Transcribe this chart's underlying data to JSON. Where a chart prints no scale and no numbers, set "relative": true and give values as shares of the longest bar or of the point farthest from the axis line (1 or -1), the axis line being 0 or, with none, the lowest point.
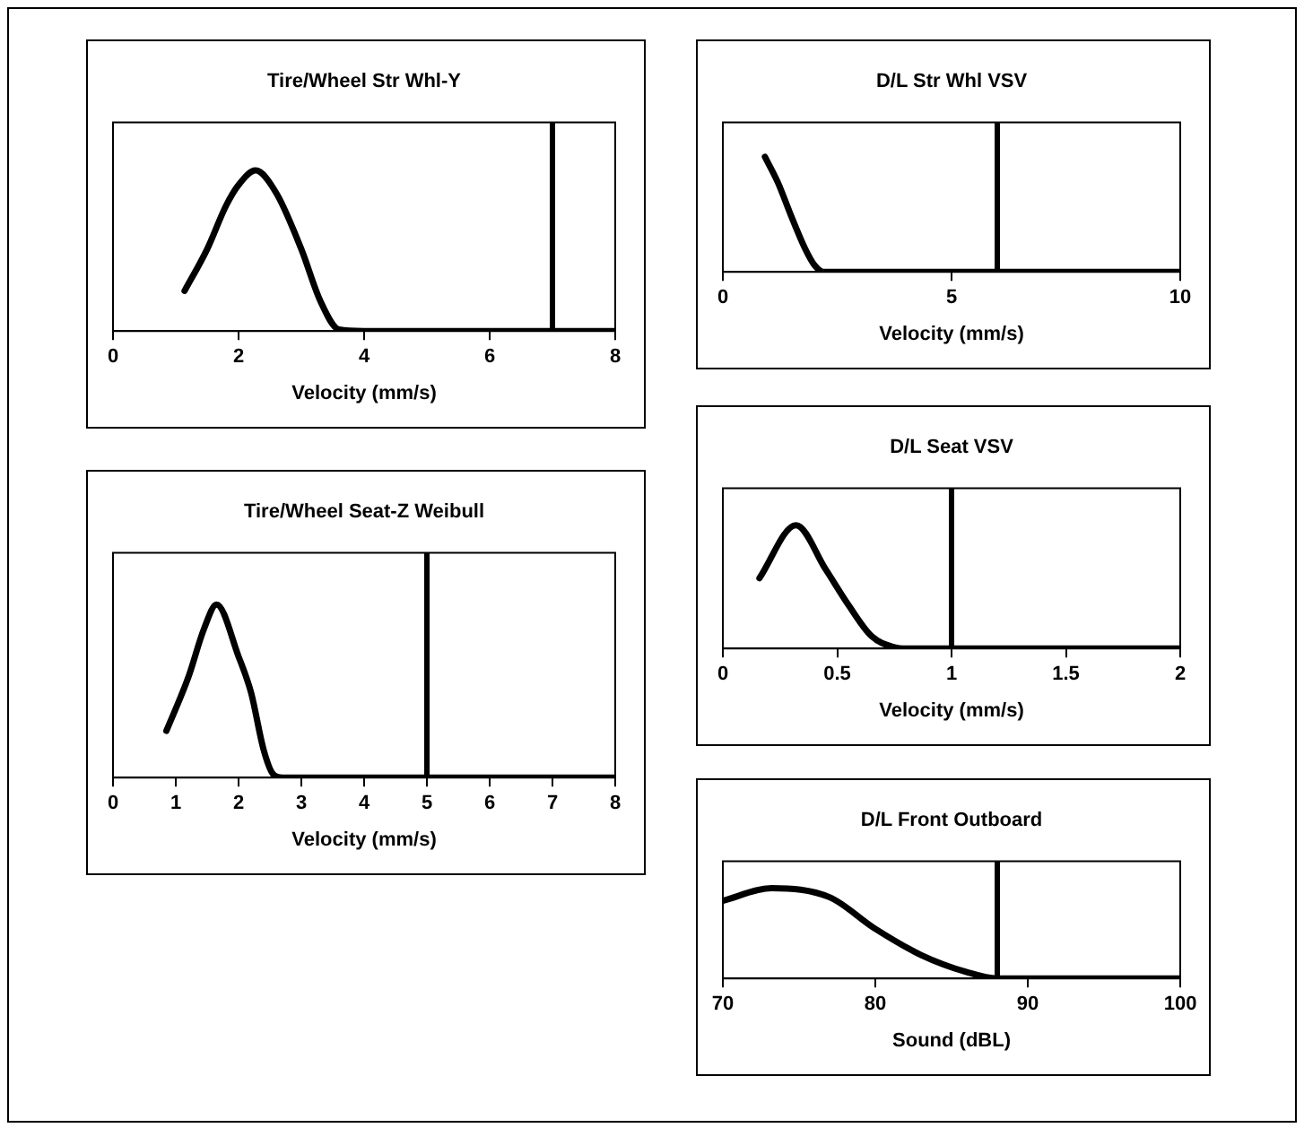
{
  "chart_data": [
    {
      "type": "line",
      "title": "Tire/Wheel Str Whl-Y",
      "xlabel": "Velocity (mm/s)",
      "relative": true,
      "color": "#000000",
      "xlim": [
        0,
        8
      ],
      "xticks": [
        0,
        2,
        4,
        6,
        8
      ],
      "x": [
        1.14,
        1.5,
        1.8,
        2.0,
        2.27,
        2.6,
        3.0,
        3.3,
        3.6,
        4,
        8
      ],
      "values": [
        0.25,
        0.51,
        0.78,
        0.91,
        1,
        0.86,
        0.51,
        0.19,
        0.01,
        0,
        0
      ],
      "ref_lines": [
        {
          "axis": "x",
          "value": 7
        }
      ]
    },
    {
      "type": "line",
      "title": "D/L Str Whl VSV",
      "xlabel": "Velocity (mm/s)",
      "relative": true,
      "color": "#000000",
      "xlim": [
        0,
        10
      ],
      "xticks": [
        0,
        5,
        10
      ],
      "x": [
        0.92,
        1.2,
        1.5,
        1.8,
        2.0,
        2.2,
        10
      ],
      "values": [
        1,
        0.78,
        0.48,
        0.2,
        0.06,
        0,
        0
      ],
      "ref_lines": [
        {
          "axis": "x",
          "value": 6
        }
      ]
    },
    {
      "type": "line",
      "title": "Tire/Wheel Seat-Z Weibull",
      "xlabel": "Velocity (mm/s)",
      "relative": true,
      "color": "#000000",
      "xlim": [
        0,
        8
      ],
      "xticks": [
        0,
        1,
        2,
        3,
        4,
        5,
        6,
        7,
        8
      ],
      "x": [
        0.85,
        1.2,
        1.45,
        1.65,
        2.0,
        2.2,
        2.4,
        2.55,
        2.7,
        8
      ],
      "values": [
        0.27,
        0.58,
        0.86,
        1,
        0.7,
        0.49,
        0.16,
        0.02,
        0,
        0
      ],
      "ref_lines": [
        {
          "axis": "x",
          "value": 5
        }
      ]
    },
    {
      "type": "line",
      "title": "D/L Seat VSV",
      "xlabel": "Velocity (mm/s)",
      "relative": true,
      "color": "#000000",
      "xlim": [
        0,
        2
      ],
      "xticks": [
        0,
        0.5,
        1,
        1.5,
        2
      ],
      "x": [
        0.16,
        0.32,
        0.45,
        0.55,
        0.65,
        0.75,
        0.8,
        2
      ],
      "values": [
        0.57,
        1,
        0.64,
        0.35,
        0.1,
        0.01,
        0,
        0
      ],
      "ref_lines": [
        {
          "axis": "x",
          "value": 1
        }
      ]
    },
    {
      "type": "line",
      "title": "D/L Front Outboard",
      "xlabel": "Sound (dBL)",
      "relative": true,
      "color": "#000000",
      "xlim": [
        70,
        100
      ],
      "xticks": [
        70,
        80,
        90,
        100
      ],
      "x": [
        70,
        73.2,
        77,
        80,
        83,
        86,
        88,
        100
      ],
      "values": [
        0.86,
        1,
        0.9,
        0.55,
        0.26,
        0.07,
        0,
        0
      ],
      "ref_lines": [
        {
          "axis": "x",
          "value": 88
        }
      ]
    }
  ]
}
